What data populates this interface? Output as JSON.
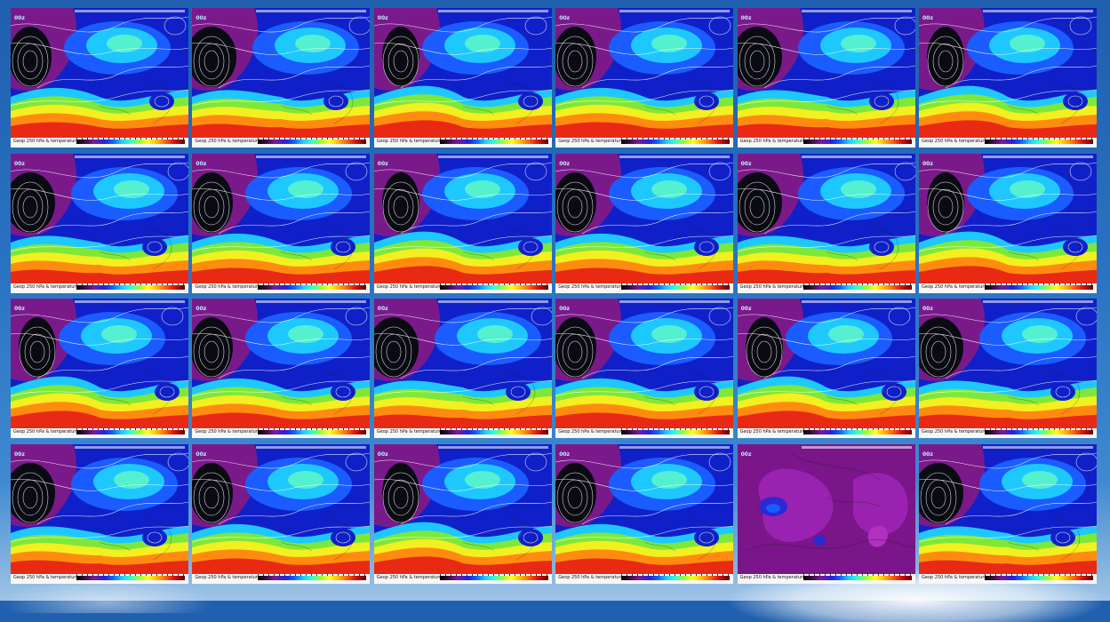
{
  "panels": [
    {
      "caption": "Geop 250 hPa & temperature",
      "run": "00z",
      "variant": "a"
    },
    {
      "caption": "Geop 250 hPa & temperature",
      "run": "00z",
      "variant": "b"
    },
    {
      "caption": "Geop 250 hPa & temperature",
      "run": "00z",
      "variant": "c"
    },
    {
      "caption": "Geop 250 hPa & temperature",
      "run": "00z",
      "variant": "a"
    },
    {
      "caption": "Geop 250 hPa & temperature",
      "run": "00z",
      "variant": "b"
    },
    {
      "caption": "Geop 250 hPa & temperature",
      "run": "00z",
      "variant": "c"
    },
    {
      "caption": "Geop 250 hPa & temperature",
      "run": "00z",
      "variant": "b"
    },
    {
      "caption": "Geop 250 hPa & temperature",
      "run": "00z",
      "variant": "a"
    },
    {
      "caption": "Geop 250 hPa & temperature",
      "run": "00z",
      "variant": "c"
    },
    {
      "caption": "Geop 250 hPa & temperature",
      "run": "00z",
      "variant": "a"
    },
    {
      "caption": "Geop 250 hPa & temperature",
      "run": "00z",
      "variant": "b"
    },
    {
      "caption": "Geop 250 hPa & temperature",
      "run": "00z",
      "variant": "c"
    },
    {
      "caption": "Geop 250 hPa & temperature",
      "run": "00z",
      "variant": "c"
    },
    {
      "caption": "Geop 250 hPa & temperature",
      "run": "00z",
      "variant": "a"
    },
    {
      "caption": "Geop 250 hPa & temperature",
      "run": "00z",
      "variant": "b"
    },
    {
      "caption": "Geop 250 hPa & temperature",
      "run": "00z",
      "variant": "a"
    },
    {
      "caption": "Geop 250 hPa & temperature",
      "run": "00z",
      "variant": "c"
    },
    {
      "caption": "Geop 250 hPa & temperature",
      "run": "00z",
      "variant": "b"
    },
    {
      "caption": "Geop 250 hPa & temperature",
      "run": "00z",
      "variant": "b"
    },
    {
      "caption": "Geop 250 hPa & temperature",
      "run": "00z",
      "variant": "a"
    },
    {
      "caption": "Geop 250 hPa & temperature",
      "run": "00z",
      "variant": "c"
    },
    {
      "caption": "Geop 250 hPa & temperature",
      "run": "00z",
      "variant": "a"
    },
    {
      "caption": "Geop 250 hPa & temperature",
      "run": "00z",
      "variant": "spread"
    },
    {
      "caption": "Geop 250 hPa & temperature",
      "run": "00z",
      "variant": "b"
    }
  ],
  "colors": {
    "black_low": "#0a0a12",
    "purple": "#7a1a8a",
    "blue_dark": "#1020c8",
    "blue": "#1a5cff",
    "cyan": "#1ec8ff",
    "aqua": "#55f0d0",
    "green": "#7ee83a",
    "yellow": "#f2f020",
    "orange": "#ff8c10",
    "red": "#e82a14",
    "spread_bg": "#8a1a9a"
  }
}
